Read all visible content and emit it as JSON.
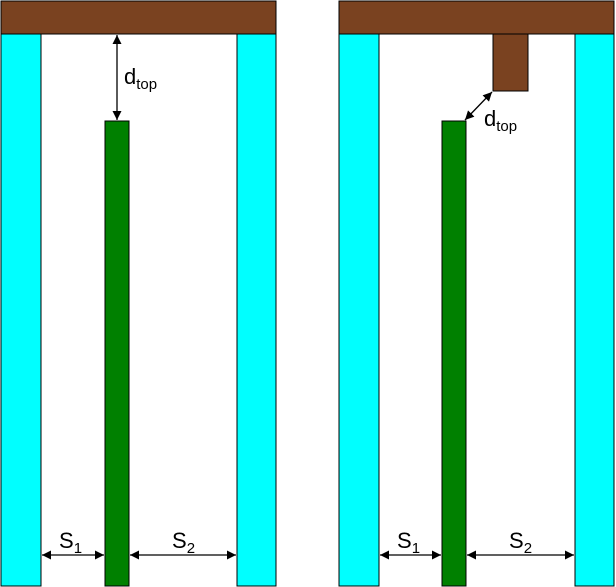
{
  "colors": {
    "wall": "#00ffff",
    "rod": "#008000",
    "top_block": "#7a4220",
    "outline": "#000000",
    "background": "#ffffff"
  },
  "left_panel": {
    "distance_label": {
      "main": "d",
      "sub": "top"
    },
    "spacing_left": {
      "main": "S",
      "sub": "1"
    },
    "spacing_right": {
      "main": "S",
      "sub": "2"
    }
  },
  "right_panel": {
    "distance_label": {
      "main": "d",
      "sub": "top"
    },
    "spacing_left": {
      "main": "S",
      "sub": "1"
    },
    "spacing_right": {
      "main": "S",
      "sub": "2"
    }
  }
}
